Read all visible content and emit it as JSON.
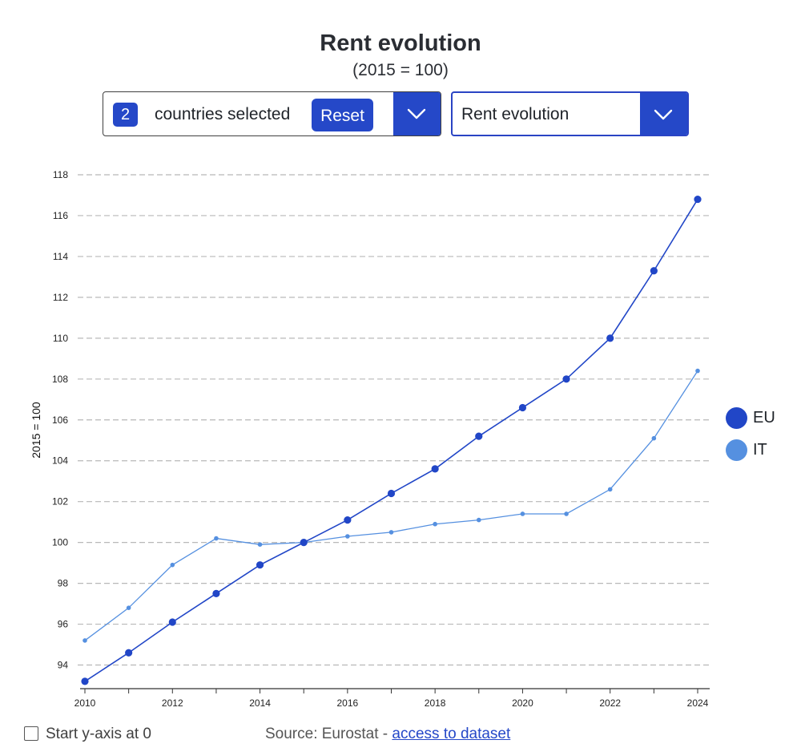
{
  "header": {
    "title": "Rent evolution",
    "subtitle": "(2015 = 100)"
  },
  "controls": {
    "countries": {
      "count": "2",
      "label": "countries selected",
      "reset_label": "Reset",
      "icon": "chevron-down-icon"
    },
    "indicator": {
      "selected": "Rent evolution",
      "icon": "chevron-down-icon"
    }
  },
  "footer": {
    "yaxis_toggle_label": "Start y-axis at 0",
    "yaxis_toggle_checked": false,
    "source_prefix": "Source: Eurostat - ",
    "source_link": "access to dataset"
  },
  "colors": {
    "accent": "#2548c8",
    "eu": "#2146c7",
    "it": "#5590e0",
    "grid": "#b8b8b8"
  },
  "chart_data": {
    "type": "line",
    "ylabel": "2015 = 100",
    "xlabel": "",
    "x": [
      2010,
      2011,
      2012,
      2013,
      2014,
      2015,
      2016,
      2017,
      2018,
      2019,
      2020,
      2021,
      2022,
      2023,
      2024
    ],
    "xticks": [
      "2010",
      "2012",
      "2014",
      "2016",
      "2018",
      "2020",
      "2022",
      "2024"
    ],
    "ylim": [
      93,
      118
    ],
    "yticks": [
      "94",
      "96",
      "98",
      "100",
      "102",
      "104",
      "106",
      "108",
      "110",
      "112",
      "114",
      "116",
      "118"
    ],
    "grid": true,
    "legend_position": "right",
    "series": [
      {
        "name": "EU",
        "color": "#2146c7",
        "values": [
          93.2,
          94.6,
          96.1,
          97.5,
          98.9,
          100.0,
          101.1,
          102.4,
          103.6,
          105.2,
          106.6,
          108.0,
          110.0,
          113.3,
          116.8
        ]
      },
      {
        "name": "IT",
        "color": "#5590e0",
        "values": [
          95.2,
          96.8,
          98.9,
          100.2,
          99.9,
          100.0,
          100.3,
          100.5,
          100.9,
          101.1,
          101.4,
          101.4,
          102.6,
          105.1,
          108.4
        ]
      }
    ]
  }
}
